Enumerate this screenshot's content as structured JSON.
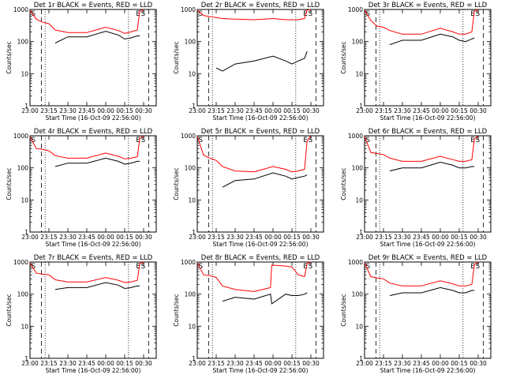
{
  "figure": {
    "ylabel": "Counts/sec",
    "xlabel": "Start Time (16-Oct-09 22:56:00)"
  },
  "colors": {
    "events": "#000000",
    "lld": "#ff0000",
    "axis": "#000000"
  },
  "chart_data": [
    {
      "type": "line",
      "title": "Det 1r BLACK = Events, RED = LLD",
      "xlabel": "Start Time (16-Oct-09 22:56:00)",
      "ylabel": "Counts/sec",
      "yscale": "log",
      "ylim": [
        1,
        1000
      ],
      "xlim": [
        "23:00",
        "00:40"
      ],
      "xticks": [
        "23:00",
        "23:15",
        "23:30",
        "23:45",
        "00:00",
        "00:15",
        "00:30"
      ],
      "yticks": [
        "1",
        "10",
        "100",
        "1000"
      ],
      "markers": [
        "S",
        "E",
        "S"
      ],
      "x": [
        "23:00",
        "23:05",
        "23:10",
        "23:15",
        "23:20",
        "23:30",
        "23:45",
        "24:00",
        "24:10",
        "24:15",
        "24:20",
        "24:25",
        "24:27",
        "24:30"
      ],
      "series": [
        {
          "role": "events",
          "values": [
            null,
            null,
            null,
            null,
            90,
            140,
            140,
            210,
            160,
            120,
            130,
            150,
            150,
            null
          ]
        },
        {
          "role": "lld",
          "values": [
            950,
            500,
            400,
            360,
            230,
            190,
            190,
            280,
            220,
            180,
            200,
            230,
            900,
            1000
          ]
        }
      ]
    },
    {
      "type": "line",
      "title": "Det 2r BLACK = Events, RED = LLD",
      "xlabel": "Start Time (16-Oct-09 22:56:00)",
      "ylabel": "Counts/sec",
      "yscale": "log",
      "ylim": [
        1,
        1000
      ],
      "xlim": [
        "23:00",
        "00:40"
      ],
      "xticks": [
        "23:00",
        "23:15",
        "23:30",
        "23:45",
        "00:00",
        "00:15",
        "00:30"
      ],
      "yticks": [
        "1",
        "10",
        "100",
        "1000"
      ],
      "markers": [
        "S",
        "E",
        "S"
      ],
      "x": [
        "23:00",
        "23:05",
        "23:10",
        "23:15",
        "23:20",
        "23:30",
        "23:45",
        "24:00",
        "24:10",
        "24:15",
        "24:20",
        "24:25",
        "24:27",
        "24:30"
      ],
      "series": [
        {
          "role": "events",
          "values": [
            null,
            null,
            null,
            15,
            12,
            20,
            25,
            35,
            25,
            20,
            25,
            30,
            50,
            null
          ]
        },
        {
          "role": "lld",
          "values": [
            950,
            650,
            600,
            560,
            520,
            500,
            480,
            520,
            480,
            480,
            480,
            520,
            950,
            1000
          ]
        }
      ]
    },
    {
      "type": "line",
      "title": "Det 3r BLACK = Events, RED = LLD",
      "xlabel": "Start Time (16-Oct-09 22:56:00)",
      "ylabel": "Counts/sec",
      "yscale": "log",
      "ylim": [
        1,
        1000
      ],
      "xlim": [
        "23:00",
        "00:40"
      ],
      "xticks": [
        "23:00",
        "23:15",
        "23:30",
        "23:45",
        "00:00",
        "00:15",
        "00:30"
      ],
      "yticks": [
        "1",
        "10",
        "100",
        "1000"
      ],
      "markers": [
        "S",
        "E",
        "S"
      ],
      "x": [
        "23:00",
        "23:05",
        "23:10",
        "23:15",
        "23:20",
        "23:30",
        "23:45",
        "24:00",
        "24:10",
        "24:15",
        "24:20",
        "24:25",
        "24:27",
        "24:30"
      ],
      "series": [
        {
          "role": "events",
          "values": [
            null,
            null,
            null,
            null,
            80,
            110,
            110,
            170,
            140,
            110,
            100,
            120,
            130,
            null
          ]
        },
        {
          "role": "lld",
          "values": [
            950,
            450,
            300,
            280,
            220,
            170,
            170,
            260,
            200,
            170,
            170,
            200,
            900,
            1000
          ]
        }
      ]
    },
    {
      "type": "line",
      "title": "Det 4r BLACK = Events, RED = LLD",
      "xlabel": "Start Time (16-Oct-09 22:56:00)",
      "ylabel": "Counts/sec",
      "yscale": "log",
      "ylim": [
        1,
        1000
      ],
      "xlim": [
        "23:00",
        "00:40"
      ],
      "xticks": [
        "23:00",
        "23:15",
        "23:30",
        "23:45",
        "00:00",
        "00:15",
        "00:30"
      ],
      "yticks": [
        "1",
        "10",
        "100",
        "1000"
      ],
      "markers": [
        "S",
        "E",
        "S"
      ],
      "x": [
        "23:00",
        "23:05",
        "23:10",
        "23:15",
        "23:20",
        "23:30",
        "23:45",
        "24:00",
        "24:10",
        "24:15",
        "24:20",
        "24:25",
        "24:27",
        "24:30"
      ],
      "series": [
        {
          "role": "events",
          "values": [
            null,
            null,
            null,
            null,
            110,
            140,
            140,
            200,
            160,
            130,
            140,
            160,
            160,
            null
          ]
        },
        {
          "role": "lld",
          "values": [
            950,
            400,
            380,
            340,
            240,
            200,
            200,
            290,
            230,
            190,
            200,
            220,
            850,
            1000
          ]
        }
      ]
    },
    {
      "type": "line",
      "title": "Det 5r BLACK = Events, RED = LLD",
      "xlabel": "Start Time (16-Oct-09 22:56:00)",
      "ylabel": "Counts/sec",
      "yscale": "log",
      "ylim": [
        1,
        1000
      ],
      "xlim": [
        "23:00",
        "00:40"
      ],
      "xticks": [
        "23:00",
        "23:15",
        "23:30",
        "23:45",
        "00:00",
        "00:15",
        "00:30"
      ],
      "yticks": [
        "1",
        "10",
        "100",
        "1000"
      ],
      "markers": [
        "S",
        "E",
        "S"
      ],
      "x": [
        "23:00",
        "23:05",
        "23:10",
        "23:15",
        "23:20",
        "23:30",
        "23:45",
        "24:00",
        "24:10",
        "24:15",
        "24:20",
        "24:25",
        "24:27",
        "24:30"
      ],
      "series": [
        {
          "role": "events",
          "values": [
            null,
            null,
            null,
            null,
            25,
            40,
            45,
            70,
            55,
            45,
            50,
            55,
            60,
            null
          ]
        },
        {
          "role": "lld",
          "values": [
            950,
            250,
            200,
            170,
            110,
            80,
            75,
            110,
            90,
            75,
            80,
            90,
            700,
            1000
          ]
        }
      ]
    },
    {
      "type": "line",
      "title": "Det 6r BLACK = Events, RED = LLD",
      "xlabel": "Start Time (16-Oct-09 22:56:00)",
      "ylabel": "Counts/sec",
      "yscale": "log",
      "ylim": [
        1,
        1000
      ],
      "xlim": [
        "23:00",
        "00:40"
      ],
      "xticks": [
        "23:00",
        "23:15",
        "23:30",
        "23:45",
        "00:00",
        "00:15",
        "00:30"
      ],
      "yticks": [
        "1",
        "10",
        "100",
        "1000"
      ],
      "markers": [
        "S",
        "E",
        "S"
      ],
      "x": [
        "23:00",
        "23:05",
        "23:10",
        "23:15",
        "23:20",
        "23:30",
        "23:45",
        "24:00",
        "24:10",
        "24:15",
        "24:20",
        "24:25",
        "24:27",
        "24:30"
      ],
      "series": [
        {
          "role": "events",
          "values": [
            null,
            null,
            null,
            null,
            80,
            100,
            100,
            150,
            120,
            100,
            100,
            110,
            110,
            null
          ]
        },
        {
          "role": "lld",
          "values": [
            950,
            300,
            280,
            260,
            200,
            160,
            160,
            230,
            180,
            160,
            160,
            180,
            800,
            1000
          ]
        }
      ]
    },
    {
      "type": "line",
      "title": "Det 7r BLACK = Events, RED = LLD",
      "xlabel": "Start Time (16-Oct-09 22:56:00)",
      "ylabel": "Counts/sec",
      "yscale": "log",
      "ylim": [
        1,
        1000
      ],
      "xlim": [
        "23:00",
        "00:40"
      ],
      "xticks": [
        "23:00",
        "23:15",
        "23:30",
        "23:45",
        "00:00",
        "00:15",
        "00:30"
      ],
      "yticks": [
        "1",
        "10",
        "100",
        "1000"
      ],
      "markers": [
        "S",
        "E",
        "S"
      ],
      "x": [
        "23:00",
        "23:05",
        "23:10",
        "23:15",
        "23:20",
        "23:30",
        "23:45",
        "24:00",
        "24:10",
        "24:15",
        "24:20",
        "24:25",
        "24:27",
        "24:30"
      ],
      "series": [
        {
          "role": "events",
          "values": [
            null,
            null,
            null,
            null,
            140,
            160,
            160,
            230,
            190,
            150,
            160,
            180,
            180,
            null
          ]
        },
        {
          "role": "lld",
          "values": [
            950,
            450,
            420,
            400,
            280,
            240,
            240,
            330,
            270,
            230,
            240,
            270,
            900,
            1000
          ]
        }
      ]
    },
    {
      "type": "line",
      "title": "Det 8r BLACK = Events, RED = LLD",
      "xlabel": "Start Time (16-Oct-09 22:56:00)",
      "ylabel": "Counts/sec",
      "yscale": "log",
      "ylim": [
        1,
        1000
      ],
      "xlim": [
        "23:00",
        "00:40"
      ],
      "xticks": [
        "23:00",
        "23:15",
        "23:30",
        "23:45",
        "00:00",
        "00:15",
        "00:30"
      ],
      "yticks": [
        "1",
        "10",
        "100",
        "1000"
      ],
      "markers": [
        "S",
        "E",
        "S"
      ],
      "x": [
        "23:00",
        "23:05",
        "23:10",
        "23:15",
        "23:20",
        "23:30",
        "23:45",
        "23:58",
        "23:59",
        "24:10",
        "24:15",
        "24:20",
        "24:25",
        "24:27",
        "24:30"
      ],
      "series": [
        {
          "role": "events",
          "values": [
            null,
            null,
            null,
            null,
            60,
            80,
            70,
            100,
            50,
            100,
            90,
            90,
            100,
            110,
            null
          ]
        },
        {
          "role": "lld",
          "values": [
            950,
            400,
            380,
            330,
            180,
            140,
            120,
            160,
            800,
            750,
            700,
            400,
            350,
            900,
            1000
          ]
        }
      ]
    },
    {
      "type": "line",
      "title": "Det 9r BLACK = Events, RED = LLD",
      "xlabel": "Start Time (16-Oct-09 22:56:00)",
      "ylabel": "Counts/sec",
      "yscale": "log",
      "ylim": [
        1,
        1000
      ],
      "xlim": [
        "23:00",
        "00:40"
      ],
      "xticks": [
        "23:00",
        "23:15",
        "23:30",
        "23:45",
        "00:00",
        "00:15",
        "00:30"
      ],
      "yticks": [
        "1",
        "10",
        "100",
        "1000"
      ],
      "markers": [
        "S",
        "E",
        "S"
      ],
      "x": [
        "23:00",
        "23:05",
        "23:10",
        "23:15",
        "23:20",
        "23:30",
        "23:45",
        "24:00",
        "24:10",
        "24:15",
        "24:20",
        "24:25",
        "24:27",
        "24:30"
      ],
      "series": [
        {
          "role": "events",
          "values": [
            null,
            null,
            null,
            null,
            90,
            110,
            110,
            160,
            130,
            110,
            110,
            130,
            130,
            null
          ]
        },
        {
          "role": "lld",
          "values": [
            950,
            350,
            320,
            300,
            220,
            180,
            180,
            260,
            210,
            180,
            180,
            200,
            850,
            1000
          ]
        }
      ]
    }
  ]
}
